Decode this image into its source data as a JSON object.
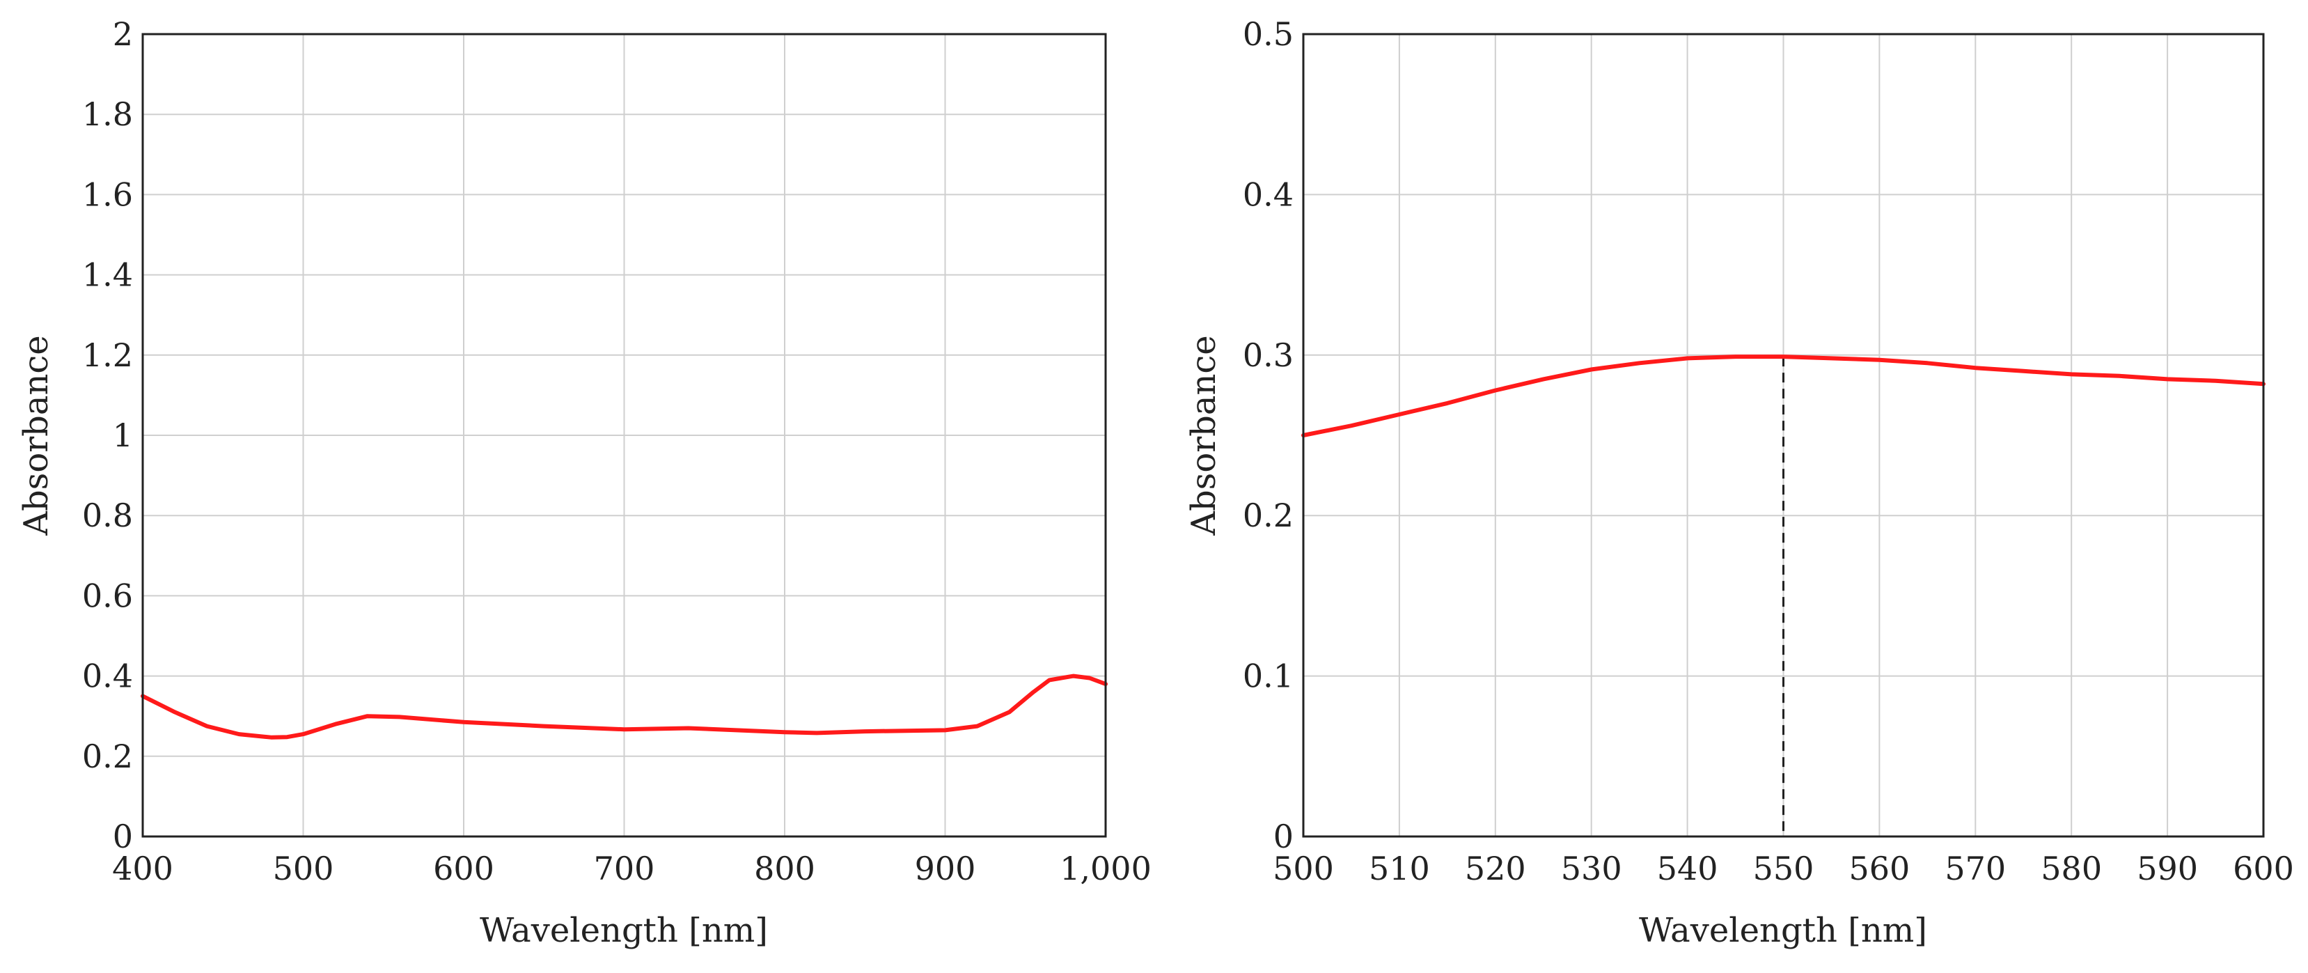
{
  "chart_data": [
    {
      "type": "line",
      "title": "",
      "xlabel": "Wavelength [nm]",
      "ylabel": "Absorbance",
      "xlim": [
        400,
        1000
      ],
      "ylim": [
        0,
        2
      ],
      "grid": true,
      "xticks": [
        400,
        500,
        600,
        700,
        800,
        900,
        1000
      ],
      "xtick_labels": [
        "400",
        "500",
        "600",
        "700",
        "800",
        "900",
        "1,000"
      ],
      "yticks": [
        0,
        0.2,
        0.4,
        0.6,
        0.8,
        1,
        1.2,
        1.4,
        1.6,
        1.8,
        2
      ],
      "ytick_labels": [
        "0",
        "0.2",
        "0.4",
        "0.6",
        "0.8",
        "1",
        "1.2",
        "1.4",
        "1.6",
        "1.8",
        "2"
      ],
      "series": [
        {
          "name": "absorbance",
          "color": "#ff1a1a",
          "x": [
            400,
            420,
            440,
            460,
            480,
            490,
            500,
            520,
            540,
            560,
            600,
            650,
            700,
            740,
            800,
            820,
            850,
            900,
            920,
            940,
            955,
            965,
            980,
            990,
            1000
          ],
          "y": [
            0.35,
            0.31,
            0.275,
            0.255,
            0.247,
            0.248,
            0.255,
            0.28,
            0.3,
            0.298,
            0.285,
            0.275,
            0.267,
            0.27,
            0.26,
            0.258,
            0.262,
            0.265,
            0.275,
            0.31,
            0.36,
            0.39,
            0.4,
            0.395,
            0.38
          ]
        }
      ]
    },
    {
      "type": "line",
      "title": "",
      "xlabel": "Wavelength [nm]",
      "ylabel": "Absorbance",
      "xlim": [
        500,
        600
      ],
      "ylim": [
        0,
        0.5
      ],
      "grid": true,
      "xticks": [
        500,
        510,
        520,
        530,
        540,
        550,
        560,
        570,
        580,
        590,
        600
      ],
      "xtick_labels": [
        "500",
        "510",
        "520",
        "530",
        "540",
        "550",
        "560",
        "570",
        "580",
        "590",
        "600"
      ],
      "yticks": [
        0,
        0.1,
        0.2,
        0.3,
        0.4,
        0.5
      ],
      "ytick_labels": [
        "0",
        "0.1",
        "0.2",
        "0.3",
        "0.4",
        "0.5"
      ],
      "annotations": [
        {
          "type": "vertical-dashed-line",
          "x": 550,
          "y_top": 0.299
        }
      ],
      "series": [
        {
          "name": "absorbance",
          "color": "#ff1a1a",
          "x": [
            500,
            505,
            510,
            515,
            520,
            525,
            530,
            535,
            540,
            545,
            550,
            555,
            560,
            565,
            570,
            575,
            580,
            585,
            590,
            595,
            600
          ],
          "y": [
            0.25,
            0.256,
            0.263,
            0.27,
            0.278,
            0.285,
            0.291,
            0.295,
            0.298,
            0.299,
            0.299,
            0.298,
            0.297,
            0.295,
            0.292,
            0.29,
            0.288,
            0.287,
            0.285,
            0.284,
            0.282
          ]
        }
      ]
    }
  ]
}
